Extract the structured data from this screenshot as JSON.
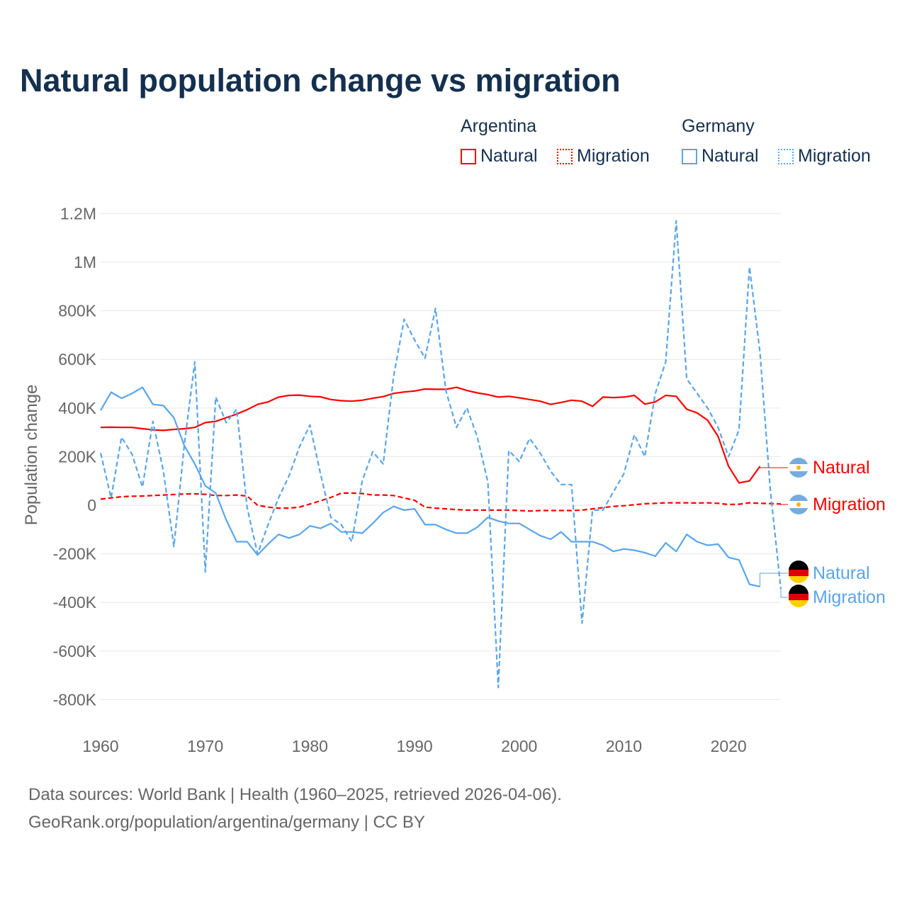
{
  "title": "Natural population change vs migration",
  "legend": {
    "groups": [
      {
        "name": "Argentina",
        "items": [
          "Natural",
          "Migration"
        ],
        "color": "#ff0000"
      },
      {
        "name": "Germany",
        "items": [
          "Natural",
          "Migration"
        ],
        "color": "#5aa5ea"
      }
    ]
  },
  "footer": {
    "line1": "Data sources: World Bank | Health (1960–2025, retrieved 2026-04-06).",
    "line2": "GeoRank.org/population/argentina/germany | CC BY"
  },
  "chart_data": {
    "type": "line",
    "title": "Natural population change vs migration",
    "xlabel": "",
    "ylabel": "Population change",
    "xlim": [
      1960,
      2025
    ],
    "ylim": [
      -800000,
      1200000
    ],
    "xticks": [
      1960,
      1970,
      1980,
      1990,
      2000,
      2010,
      2020
    ],
    "yticks": [
      {
        "v": 1200,
        "label": "1.2M"
      },
      {
        "v": 1000,
        "label": "1M"
      },
      {
        "v": 800,
        "label": "800K"
      },
      {
        "v": 600,
        "label": "600K"
      },
      {
        "v": 400,
        "label": "400K"
      },
      {
        "v": 200,
        "label": "200K"
      },
      {
        "v": 0,
        "label": "0"
      },
      {
        "v": -200,
        "label": "-200K"
      },
      {
        "v": -400,
        "label": "-400K"
      },
      {
        "v": -600,
        "label": "-600K"
      },
      {
        "v": -800,
        "label": "-800K"
      }
    ],
    "units": "thousands",
    "grid": true,
    "legend_position": "top-right",
    "series": [
      {
        "name": "Argentina Natural",
        "label": "Natural",
        "country": "Argentina",
        "color": "#ff0000",
        "dash": false,
        "start": 1960,
        "values": [
          320,
          321,
          320,
          320,
          315,
          310,
          308,
          312,
          315,
          320,
          340,
          345,
          360,
          375,
          393,
          415,
          425,
          445,
          452,
          453,
          448,
          446,
          435,
          430,
          428,
          432,
          440,
          447,
          460,
          466,
          470,
          478,
          477,
          477,
          485,
          472,
          462,
          455,
          445,
          448,
          442,
          435,
          428,
          415,
          423,
          432,
          428,
          407,
          445,
          443,
          445,
          452,
          416,
          425,
          452,
          448,
          395,
          380,
          350,
          283,
          160,
          92,
          100,
          160
        ]
      },
      {
        "name": "Argentina Migration",
        "label": "Migration",
        "country": "Argentina",
        "color": "#ff0000",
        "dash": true,
        "start": 1960,
        "values": [
          25,
          30,
          35,
          37,
          38,
          40,
          42,
          44,
          46,
          47,
          45,
          40,
          40,
          42,
          38,
          0,
          -8,
          -12,
          -12,
          -8,
          5,
          18,
          32,
          50,
          50,
          48,
          42,
          42,
          40,
          30,
          20,
          -8,
          -12,
          -15,
          -18,
          -20,
          -20,
          -20,
          -20,
          -20,
          -22,
          -24,
          -22,
          -22,
          -22,
          -22,
          -20,
          -15,
          -10,
          -5,
          -2,
          2,
          6,
          8,
          10,
          10,
          10,
          9,
          10,
          8,
          3,
          4,
          10,
          8,
          7,
          5
        ]
      },
      {
        "name": "Germany Natural",
        "label": "Natural",
        "country": "Germany",
        "color": "#5aa5ea",
        "dash": false,
        "start": 1960,
        "values": [
          390,
          465,
          440,
          460,
          485,
          415,
          410,
          360,
          245,
          170,
          80,
          50,
          -60,
          -150,
          -150,
          -205,
          -160,
          -120,
          -135,
          -120,
          -85,
          -95,
          -75,
          -110,
          -110,
          -115,
          -75,
          -30,
          -5,
          -20,
          -15,
          -80,
          -80,
          -100,
          -115,
          -115,
          -90,
          -50,
          -65,
          -75,
          -75,
          -100,
          -125,
          -140,
          -110,
          -150,
          -150,
          -150,
          -165,
          -190,
          -180,
          -185,
          -195,
          -210,
          -155,
          -190,
          -120,
          -150,
          -165,
          -160,
          -215,
          -225,
          -325,
          -335
        ]
      },
      {
        "name": "Germany Migration",
        "label": "Migration",
        "country": "Germany",
        "color": "#5aa5ea",
        "dash": true,
        "start": 1960,
        "values": [
          215,
          30,
          280,
          210,
          75,
          345,
          140,
          -170,
          250,
          590,
          -275,
          445,
          340,
          395,
          -10,
          -200,
          -80,
          30,
          120,
          240,
          330,
          130,
          -50,
          -80,
          -150,
          100,
          220,
          170,
          530,
          765,
          680,
          605,
          810,
          470,
          320,
          400,
          280,
          95,
          -750,
          225,
          180,
          275,
          215,
          140,
          85,
          85,
          -485,
          -20,
          -20,
          55,
          130,
          290,
          200,
          460,
          590,
          1170,
          520,
          460,
          400,
          320,
          200,
          310,
          980,
          630,
          60,
          -345
        ]
      }
    ]
  }
}
